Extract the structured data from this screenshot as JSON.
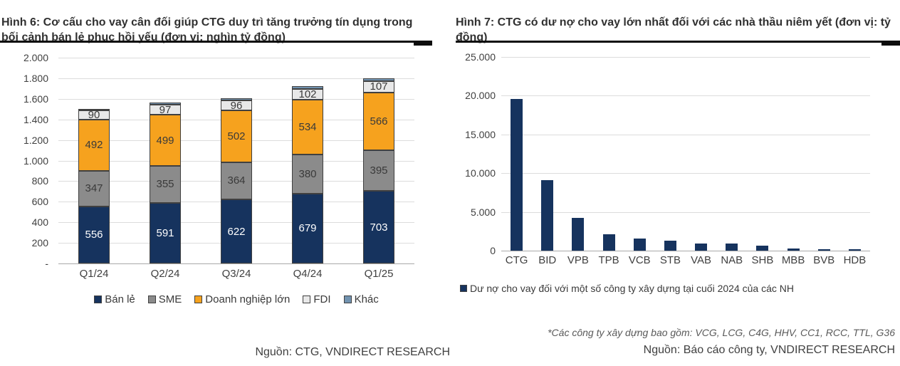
{
  "colors": {
    "navy": "#16335E",
    "gray": "#8B8B8B",
    "orange": "#F6A21E",
    "light_gray": "#E8E8E8",
    "steel_blue": "#7293B0",
    "gridline": "#DCDCDC",
    "axis": "#A9A9A9",
    "title_rule": "#0D0D0D",
    "text": "#404040"
  },
  "chart_data": [
    {
      "name": "figure-6",
      "type": "bar",
      "stacked": true,
      "title": "Hình 6: Cơ cấu cho vay cân đối giúp CTG duy trì tăng trưởng tín dụng trong bối cảnh bán lẻ phục hồi yếu (đơn vị: nghìn tỷ đồng)",
      "source": "Nguồn: CTG, VNDIRECT RESEARCH",
      "categories": [
        "Q1/24",
        "Q2/24",
        "Q3/24",
        "Q4/24",
        "Q1/25"
      ],
      "series": [
        {
          "name": "Bán lẻ",
          "color": "#16335E",
          "label_color": "#ffffff",
          "show_labels": true,
          "values": [
            556,
            591,
            622,
            679,
            703
          ]
        },
        {
          "name": "SME",
          "color": "#8B8B8B",
          "label_color": "#3a3a3a",
          "show_labels": true,
          "values": [
            347,
            355,
            364,
            380,
            395
          ]
        },
        {
          "name": "Doanh nghiệp lớn",
          "color": "#F6A21E",
          "label_color": "#3a3a3a",
          "show_labels": true,
          "values": [
            492,
            499,
            502,
            534,
            566
          ]
        },
        {
          "name": "FDI",
          "color": "#E8E8E8",
          "label_color": "#3a3a3a",
          "show_labels": true,
          "values": [
            90,
            97,
            96,
            102,
            107
          ]
        },
        {
          "name": "Khác",
          "color": "#7293B0",
          "label_color": "#3a3a3a",
          "show_labels": false,
          "values": [
            20,
            20,
            20,
            25,
            25
          ]
        }
      ],
      "ylim": [
        0,
        2000
      ],
      "ytick_labels": [
        "-",
        "200",
        "400",
        "600",
        "800",
        "1.000",
        "1.200",
        "1.400",
        "1.600",
        "1.800",
        "2.000"
      ],
      "grid": true,
      "legend_position": "bottom-center"
    },
    {
      "name": "figure-7",
      "type": "bar",
      "stacked": false,
      "title": "Hình 7: CTG có dư nợ cho vay lớn nhất đối với các nhà thầu niêm yết (đơn vị: tỷ đồng)",
      "footnote": "*Các công ty xây dựng bao gồm: VCG, LCG, C4G, HHV, CC1, RCC, TTL, G36",
      "source": "Nguồn: Báo cáo công ty, VNDIRECT RESEARCH",
      "categories": [
        "CTG",
        "BID",
        "VPB",
        "TPB",
        "VCB",
        "STB",
        "VAB",
        "NAB",
        "SHB",
        "MBB",
        "BVB",
        "HDB"
      ],
      "series": [
        {
          "name": "Dư nợ cho vay đối với một số công ty xây dựng tại cuối 2024 của các NH",
          "color": "#16335E",
          "show_labels": false,
          "values": [
            19600,
            9100,
            4200,
            2100,
            1600,
            1300,
            950,
            900,
            600,
            250,
            150,
            150
          ]
        }
      ],
      "ylim": [
        0,
        25000
      ],
      "ytick_labels": [
        "0",
        "5.000",
        "10.000",
        "15.000",
        "20.000",
        "25.000"
      ],
      "grid": true,
      "legend_position": "bottom-left"
    }
  ]
}
